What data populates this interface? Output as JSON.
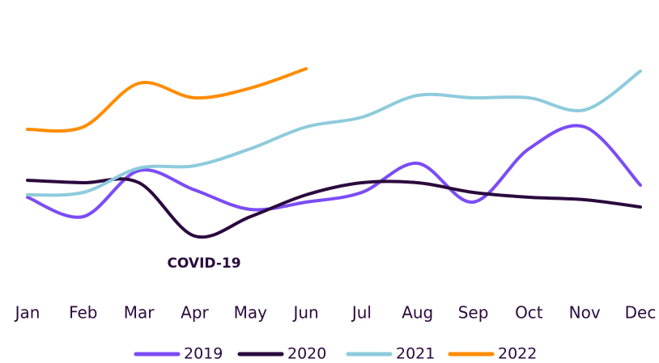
{
  "chart_data": {
    "type": "line",
    "annotation": "COVID-19",
    "categories": [
      "Jan",
      "Feb",
      "Mar",
      "Apr",
      "May",
      "Jun",
      "Jul",
      "Aug",
      "Sep",
      "Oct",
      "Nov",
      "Dec"
    ],
    "ylim": [
      0,
      100
    ],
    "series": [
      {
        "name": "2019",
        "color": "#7b4cf5",
        "values": [
          32,
          24,
          43,
          35,
          27,
          30,
          34,
          46,
          30,
          52,
          61,
          37
        ]
      },
      {
        "name": "2020",
        "color": "#2b0a3d",
        "values": [
          39,
          38,
          38,
          16,
          24,
          33,
          38,
          38,
          34,
          32,
          31,
          28
        ]
      },
      {
        "name": "2021",
        "color": "#8ecbdc",
        "values": [
          33,
          34,
          44,
          45,
          52,
          61,
          65,
          74,
          73,
          73,
          68,
          84
        ]
      },
      {
        "name": "2022",
        "color": "#ff8c00",
        "values": [
          60,
          61,
          79,
          73,
          77,
          85,
          null,
          null,
          null,
          null,
          null,
          null
        ]
      }
    ]
  }
}
